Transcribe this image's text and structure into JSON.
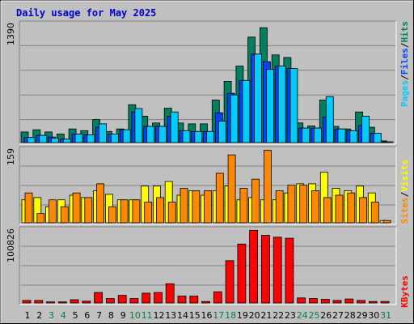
{
  "title": "Daily usage for May 2025",
  "colors": {
    "background": "#c0c0c0",
    "plot": "#c0c0c0",
    "grid": "#808080",
    "pages": "#00ccff",
    "files": "#0044ff",
    "hits": "#008060",
    "visits": "#ffff00",
    "sites": "#ff8800",
    "kbytes": "#ff0000",
    "weekend_label": "#008040",
    "weekday_label": "#000000"
  },
  "side_labels": {
    "top": {
      "pages": "Pages",
      "files": "Files",
      "hits": "Hits",
      "sep": "/"
    },
    "mid": {
      "sites": "Sites",
      "visits": "Visits",
      "sep": "/"
    },
    "bot": {
      "kbytes": "KBytes"
    }
  },
  "chart_data": [
    {
      "type": "bar",
      "title": "Daily usage for May 2025",
      "categories": [
        "1",
        "2",
        "3",
        "4",
        "5",
        "6",
        "7",
        "8",
        "9",
        "10",
        "11",
        "12",
        "13",
        "14",
        "15",
        "16",
        "17",
        "18",
        "19",
        "20",
        "21",
        "22",
        "23",
        "24",
        "25",
        "26",
        "27",
        "28",
        "29",
        "30",
        "31"
      ],
      "weekend_days": [
        3,
        4,
        10,
        11,
        17,
        18,
        24,
        25,
        31
      ],
      "ymax_label": "1390",
      "ylim": [
        0,
        1390
      ],
      "series": [
        {
          "name": "Hits",
          "values": [
            125,
            150,
            125,
            100,
            160,
            140,
            270,
            130,
            160,
            445,
            310,
            230,
            405,
            230,
            220,
            220,
            500,
            720,
            900,
            1240,
            1350,
            1030,
            1000,
            230,
            195,
            500,
            190,
            160,
            360,
            180,
            20
          ]
        },
        {
          "name": "Files",
          "values": [
            60,
            85,
            65,
            40,
            100,
            90,
            180,
            100,
            150,
            360,
            190,
            190,
            310,
            140,
            130,
            130,
            350,
            580,
            730,
            1040,
            950,
            900,
            870,
            170,
            170,
            300,
            160,
            140,
            200,
            110,
            5
          ]
        },
        {
          "name": "Pages",
          "values": [
            60,
            85,
            50,
            40,
            100,
            90,
            220,
            100,
            150,
            400,
            190,
            190,
            360,
            140,
            130,
            130,
            250,
            560,
            730,
            1040,
            860,
            900,
            870,
            170,
            170,
            540,
            160,
            140,
            310,
            110,
            5
          ]
        }
      ]
    },
    {
      "type": "bar",
      "categories": [
        "1",
        "2",
        "3",
        "4",
        "5",
        "6",
        "7",
        "8",
        "9",
        "10",
        "11",
        "12",
        "13",
        "14",
        "15",
        "16",
        "17",
        "18",
        "19",
        "20",
        "21",
        "22",
        "23",
        "24",
        "25",
        "26",
        "27",
        "28",
        "29",
        "30",
        "31"
      ],
      "ymax_label": "159",
      "ylim": [
        0,
        159
      ],
      "series": [
        {
          "name": "Visits",
          "values": [
            50,
            55,
            35,
            50,
            60,
            55,
            70,
            62,
            50,
            50,
            80,
            80,
            90,
            60,
            70,
            60,
            70,
            80,
            50,
            55,
            50,
            50,
            65,
            85,
            85,
            110,
            75,
            70,
            80,
            65,
            5
          ]
        },
        {
          "name": "Sites",
          "values": [
            65,
            20,
            50,
            35,
            65,
            55,
            85,
            35,
            50,
            50,
            45,
            55,
            45,
            75,
            70,
            70,
            108,
            148,
            75,
            95,
            158,
            70,
            82,
            82,
            70,
            55,
            60,
            65,
            55,
            45,
            5
          ]
        }
      ]
    },
    {
      "type": "bar",
      "categories": [
        "1",
        "2",
        "3",
        "4",
        "5",
        "6",
        "7",
        "8",
        "9",
        "10",
        "11",
        "12",
        "13",
        "14",
        "15",
        "16",
        "17",
        "18",
        "19",
        "20",
        "21",
        "22",
        "23",
        "24",
        "25",
        "26",
        "27",
        "28",
        "29",
        "30",
        "31"
      ],
      "ymax_label": "100826",
      "ylim": [
        0,
        100826
      ],
      "series": [
        {
          "name": "KBytes",
          "values": [
            3500,
            3500,
            1500,
            1500,
            4500,
            2500,
            14500,
            6000,
            10500,
            6000,
            13500,
            14500,
            26500,
            9500,
            9500,
            2000,
            15500,
            58500,
            81500,
            100500,
            93500,
            91000,
            89500,
            7000,
            6000,
            5000,
            3500,
            5500,
            3500,
            2000,
            2000
          ]
        }
      ]
    }
  ]
}
